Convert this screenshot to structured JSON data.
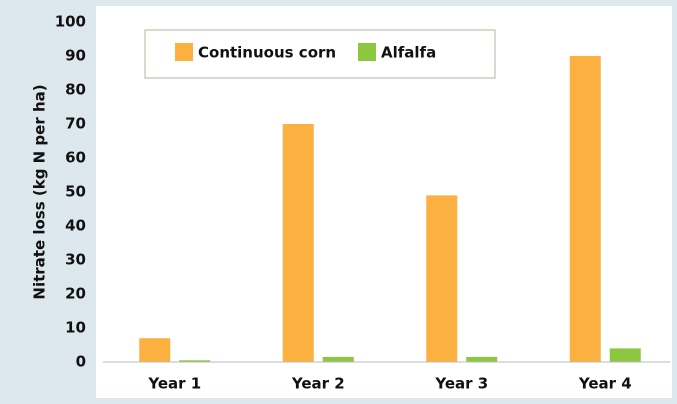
{
  "chart_data": {
    "type": "bar",
    "y_label": "Nitrate loss (kg N per ha)",
    "categories": [
      "Year 1",
      "Year 2",
      "Year 3",
      "Year 4"
    ],
    "series": [
      {
        "name": "Continuous corn",
        "color": "#fbb040",
        "values": [
          7,
          70,
          49,
          90
        ]
      },
      {
        "name": "Alfalfa",
        "color": "#8dc63f",
        "values": [
          0.5,
          1.5,
          1.5,
          4
        ]
      }
    ],
    "ylim": [
      0,
      100
    ],
    "yticks": [
      0,
      10,
      20,
      30,
      40,
      50,
      60,
      70,
      80,
      90,
      100
    ],
    "legend": "top-left"
  }
}
